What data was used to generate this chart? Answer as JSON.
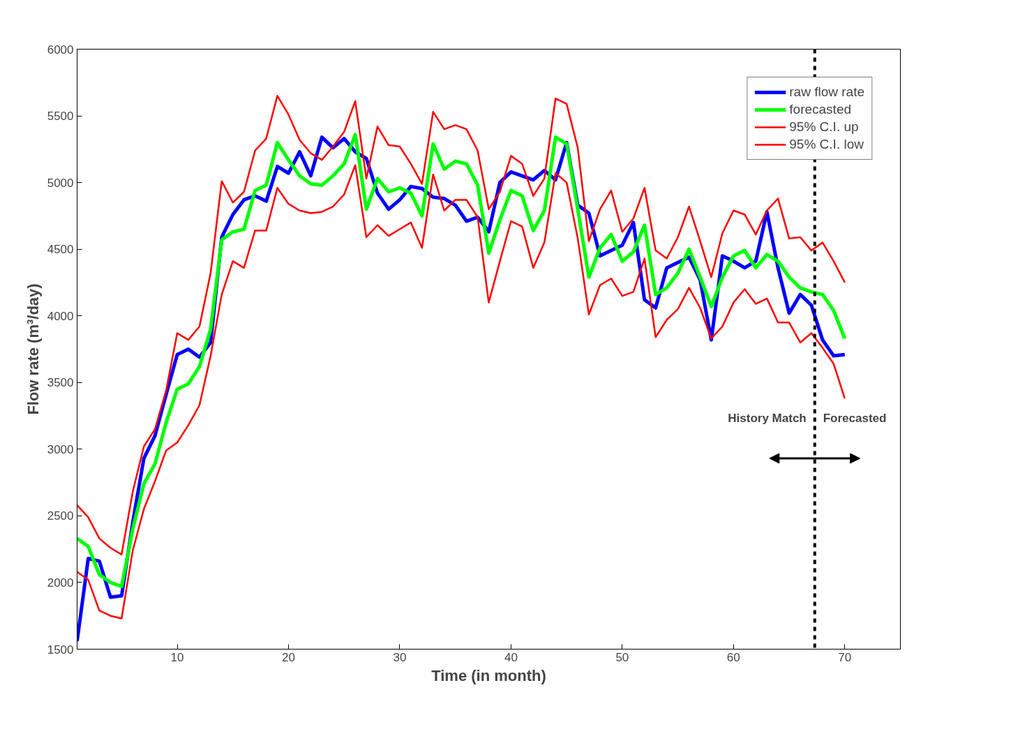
{
  "chart_data": {
    "type": "line",
    "xlabel": "Time (in month)",
    "ylabel": "Flow rate (m³/day)",
    "x": [
      1,
      2,
      3,
      4,
      5,
      6,
      7,
      8,
      9,
      10,
      11,
      12,
      13,
      14,
      15,
      16,
      17,
      18,
      19,
      20,
      21,
      22,
      23,
      24,
      25,
      26,
      27,
      28,
      29,
      30,
      31,
      32,
      33,
      34,
      35,
      36,
      37,
      38,
      39,
      40,
      41,
      42,
      43,
      44,
      45,
      46,
      47,
      48,
      49,
      50,
      51,
      52,
      53,
      54,
      55,
      56,
      57,
      58,
      59,
      60,
      61,
      62,
      63,
      64,
      65,
      66,
      67,
      68,
      69,
      70
    ],
    "series": [
      {
        "name": "raw flow rate",
        "color": "#0000ff",
        "values": [
          1560,
          2180,
          2160,
          1890,
          1900,
          2450,
          2930,
          3100,
          3410,
          3710,
          3750,
          3690,
          3800,
          4590,
          4760,
          4870,
          4900,
          4860,
          5120,
          5070,
          5230,
          5050,
          5340,
          5260,
          5330,
          5230,
          5180,
          4920,
          4800,
          4870,
          4970,
          4955,
          4890,
          4880,
          4830,
          4710,
          4740,
          4630,
          5000,
          5080,
          5050,
          5020,
          5090,
          5020,
          5300,
          4830,
          4770,
          4450,
          4490,
          4530,
          4700,
          4120,
          4060,
          4360,
          4400,
          4440,
          4270,
          3820,
          4450,
          4410,
          4360,
          4410,
          4780,
          4360,
          4020,
          4160,
          4080,
          3820,
          3700,
          3710
        ]
      },
      {
        "name": "forecasted",
        "color": "#00ff00",
        "values": [
          2330,
          2270,
          2060,
          2000,
          1970,
          2400,
          2740,
          2890,
          3200,
          3450,
          3490,
          3620,
          3900,
          4570,
          4630,
          4650,
          4940,
          4980,
          5300,
          5170,
          5050,
          4990,
          4980,
          5050,
          5140,
          5360,
          4800,
          5030,
          4930,
          4960,
          4920,
          4750,
          5290,
          5100,
          5160,
          5140,
          4980,
          4470,
          4720,
          4940,
          4900,
          4640,
          4790,
          5340,
          5290,
          4800,
          4290,
          4510,
          4610,
          4410,
          4480,
          4680,
          4160,
          4210,
          4320,
          4500,
          4290,
          4070,
          4290,
          4450,
          4490,
          4360,
          4460,
          4410,
          4290,
          4210,
          4180,
          4160,
          4040,
          3830
        ]
      },
      {
        "name": "95% C.I. up",
        "color": "#ff0000",
        "values": [
          2580,
          2490,
          2330,
          2260,
          2210,
          2680,
          3020,
          3150,
          3440,
          3870,
          3820,
          3920,
          4320,
          5010,
          4850,
          4930,
          5240,
          5330,
          5650,
          5510,
          5320,
          5220,
          5170,
          5270,
          5380,
          5610,
          5030,
          5420,
          5280,
          5270,
          5140,
          4990,
          5530,
          5400,
          5430,
          5400,
          5240,
          4800,
          4930,
          5200,
          5140,
          4900,
          5030,
          5630,
          5590,
          5260,
          4560,
          4800,
          4940,
          4630,
          4730,
          4960,
          4490,
          4430,
          4590,
          4820,
          4560,
          4290,
          4620,
          4790,
          4760,
          4610,
          4790,
          4880,
          4580,
          4590,
          4490,
          4550,
          4410,
          4250
        ]
      },
      {
        "name": "95% C.I. low",
        "color": "#ff0000",
        "values": [
          2080,
          2020,
          1790,
          1750,
          1730,
          2240,
          2550,
          2760,
          2990,
          3050,
          3180,
          3330,
          3700,
          4160,
          4410,
          4360,
          4640,
          4640,
          4960,
          4840,
          4790,
          4770,
          4780,
          4820,
          4910,
          5130,
          4590,
          4680,
          4600,
          4650,
          4700,
          4510,
          5060,
          4790,
          4870,
          4870,
          4740,
          4100,
          4410,
          4710,
          4670,
          4360,
          4550,
          5070,
          5000,
          4580,
          4010,
          4230,
          4280,
          4150,
          4180,
          4430,
          3840,
          3970,
          4050,
          4210,
          4060,
          3830,
          3920,
          4100,
          4200,
          4090,
          4130,
          3950,
          3950,
          3800,
          3870,
          3760,
          3640,
          3380
        ]
      }
    ],
    "xlim": [
      1,
      75
    ],
    "xticks": [
      10,
      20,
      30,
      40,
      50,
      60,
      70
    ],
    "ylim": [
      1500,
      6000
    ],
    "yticks": [
      1500,
      2000,
      2500,
      3000,
      3500,
      4000,
      4500,
      5000,
      5500,
      6000
    ],
    "ref_lines": [
      {
        "axis": "x",
        "value": 67.3,
        "color": "#000000",
        "line_style": "dashed"
      }
    ],
    "annotations": [
      "History Match",
      "Forecasted"
    ],
    "legend": "top right",
    "grid": false,
    "line_style": "solid"
  }
}
